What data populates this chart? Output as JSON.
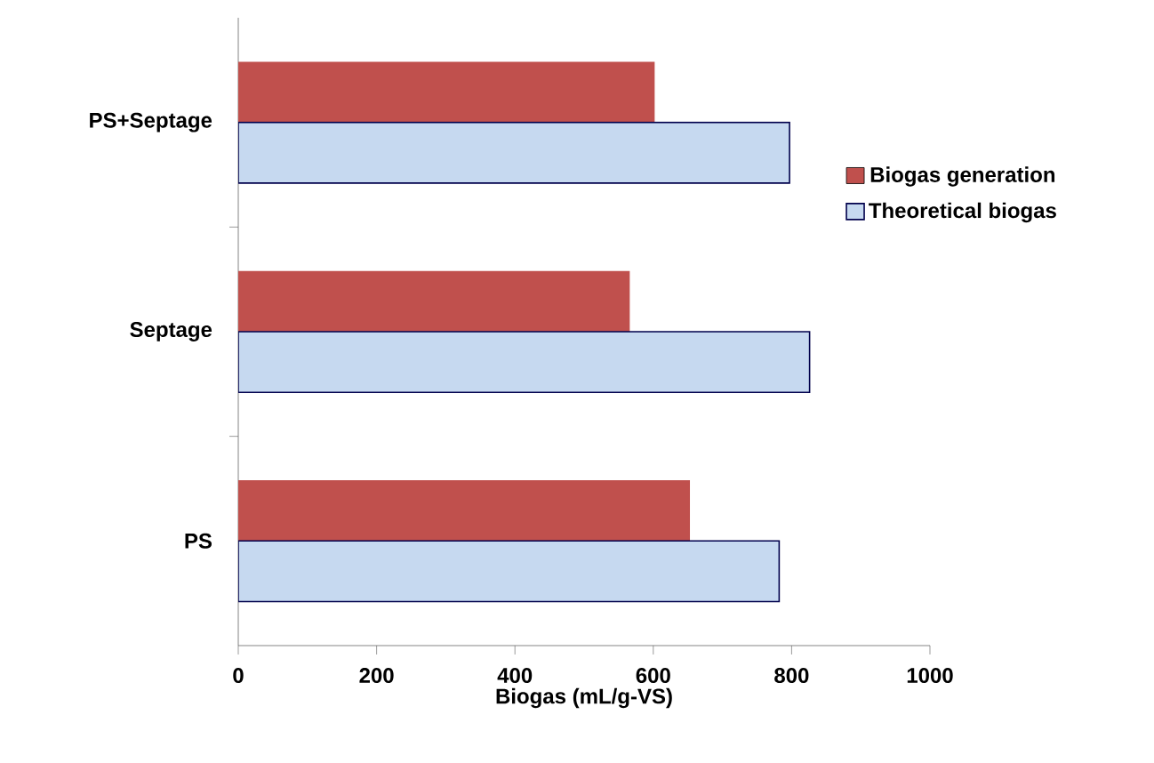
{
  "chart_data": {
    "type": "bar",
    "orientation": "horizontal",
    "categories": [
      "PS+Septage",
      "Septage",
      "PS"
    ],
    "series": [
      {
        "name": "Biogas generation",
        "color": "#c0504d",
        "values": [
          602,
          566,
          653
        ]
      },
      {
        "name": "Theoretical biogas",
        "color": "#c6d9f0",
        "values": [
          797,
          826,
          782
        ]
      }
    ],
    "xlabel": "Biogas (mL/g-VS)",
    "xlim": [
      0,
      1000
    ],
    "xticks": [
      0,
      200,
      400,
      600,
      800,
      1000
    ],
    "grid": false,
    "legend": "right"
  }
}
